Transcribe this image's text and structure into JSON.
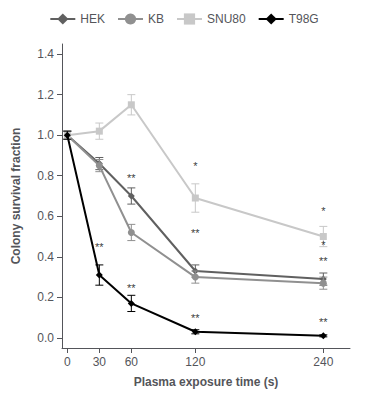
{
  "chart_data": {
    "type": "line",
    "xlabel": "Plasma exposure time (s)",
    "ylabel": "Colony survival fraction",
    "x": [
      0,
      30,
      60,
      120,
      240
    ],
    "xlim": [
      -5,
      265
    ],
    "xticks": [
      0,
      30,
      60,
      120,
      240
    ],
    "ylim": [
      -0.05,
      1.45
    ],
    "yticks": [
      {
        "value": 0,
        "label": "0.0"
      },
      0.2,
      0.4,
      0.6,
      0.8,
      {
        "value": 1.0,
        "label": "1.0"
      },
      1.2,
      1.4
    ],
    "grid": false,
    "legend": "top",
    "series": [
      {
        "name": "HEK",
        "color": "#606060",
        "marker": "diamond",
        "values": [
          1.0,
          0.86,
          0.7,
          0.33,
          0.29
        ],
        "errors": [
          0.02,
          0.03,
          0.04,
          0.03,
          0.03
        ]
      },
      {
        "name": "KB",
        "color": "#909090",
        "marker": "circle",
        "values": [
          1.0,
          0.85,
          0.52,
          0.3,
          0.27
        ],
        "errors": [
          0.02,
          0.03,
          0.04,
          0.03,
          0.03
        ]
      },
      {
        "name": "SNU80",
        "color": "#c8c8c8",
        "marker": "square",
        "values": [
          1.0,
          1.02,
          1.15,
          0.69,
          0.5
        ],
        "errors": [
          0.02,
          0.04,
          0.05,
          0.07,
          0.05
        ]
      },
      {
        "name": "T98G",
        "color": "#000000",
        "marker": "diamond",
        "values": [
          1.0,
          0.31,
          0.17,
          0.03,
          0.01
        ],
        "errors": [
          0.02,
          0.05,
          0.04,
          0.01,
          0.005
        ]
      }
    ],
    "annotations": [
      {
        "x": 30,
        "y": 0.42,
        "text": "**"
      },
      {
        "x": 60,
        "y": 0.76,
        "text": "**"
      },
      {
        "x": 60,
        "y": 0.22,
        "text": "**"
      },
      {
        "x": 120,
        "y": 0.49,
        "text": "**"
      },
      {
        "x": 120,
        "y": 0.07,
        "text": "**"
      },
      {
        "x": 120,
        "y": 0.82,
        "text": "*"
      },
      {
        "x": 240,
        "y": 0.35,
        "text": "**"
      },
      {
        "x": 240,
        "y": 0.05,
        "text": "**"
      },
      {
        "x": 240,
        "y": 0.6,
        "text": "*"
      },
      {
        "x": 240,
        "y": 0.43,
        "text": "*"
      }
    ]
  }
}
